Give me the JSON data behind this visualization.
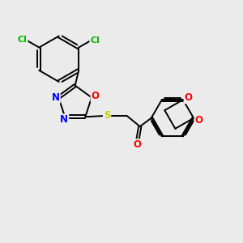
{
  "bg_color": "#ebebeb",
  "bond_color": "#000000",
  "bond_width": 1.4,
  "atom_colors": {
    "Cl": "#00bb00",
    "O": "#ff0000",
    "N": "#0000ff",
    "S": "#cccc00",
    "C": "#000000"
  },
  "font_size_atom": 8.5
}
